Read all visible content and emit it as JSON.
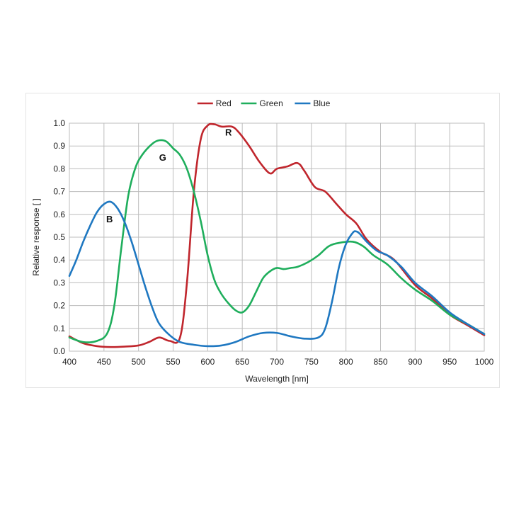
{
  "chart_data": {
    "type": "line",
    "title": "",
    "xlabel": "Wavelength [nm]",
    "ylabel": "Relative response [ ]",
    "xlim": [
      400,
      1000
    ],
    "ylim": [
      0,
      1.0
    ],
    "xticks": [
      400,
      450,
      500,
      550,
      600,
      650,
      700,
      750,
      800,
      850,
      900,
      950,
      1000
    ],
    "yticks": [
      0.0,
      0.1,
      0.2,
      0.3,
      0.4,
      0.5,
      0.6,
      0.7,
      0.8,
      0.9,
      1.0
    ],
    "grid": true,
    "legend_position": "top-center",
    "series": [
      {
        "name": "Red",
        "color": "#c0262d",
        "x": [
          400,
          420,
          440,
          460,
          480,
          500,
          515,
          530,
          545,
          560,
          570,
          580,
          590,
          600,
          610,
          620,
          635,
          645,
          660,
          675,
          690,
          700,
          715,
          730,
          740,
          755,
          770,
          785,
          800,
          815,
          830,
          850,
          870,
          900,
          925,
          950,
          975,
          1000
        ],
        "values": [
          0.065,
          0.035,
          0.022,
          0.018,
          0.02,
          0.025,
          0.04,
          0.06,
          0.045,
          0.06,
          0.3,
          0.7,
          0.93,
          0.99,
          0.995,
          0.985,
          0.985,
          0.96,
          0.9,
          0.83,
          0.78,
          0.8,
          0.81,
          0.825,
          0.79,
          0.72,
          0.7,
          0.65,
          0.6,
          0.56,
          0.49,
          0.435,
          0.4,
          0.29,
          0.23,
          0.16,
          0.115,
          0.07
        ],
        "label": "R",
        "label_at": [
          630,
          0.945
        ]
      },
      {
        "name": "Green",
        "color": "#1fae5c",
        "x": [
          400,
          420,
          440,
          455,
          465,
          475,
          485,
          495,
          505,
          520,
          530,
          540,
          550,
          560,
          570,
          580,
          590,
          600,
          610,
          620,
          630,
          640,
          650,
          660,
          670,
          680,
          690,
          700,
          710,
          720,
          730,
          745,
          760,
          775,
          790,
          810,
          825,
          840,
          860,
          880,
          900,
          925,
          950,
          975,
          1000
        ],
        "values": [
          0.06,
          0.04,
          0.045,
          0.08,
          0.2,
          0.45,
          0.68,
          0.8,
          0.86,
          0.91,
          0.925,
          0.92,
          0.89,
          0.86,
          0.8,
          0.7,
          0.57,
          0.42,
          0.31,
          0.25,
          0.21,
          0.18,
          0.17,
          0.2,
          0.26,
          0.32,
          0.35,
          0.365,
          0.36,
          0.365,
          0.37,
          0.39,
          0.42,
          0.46,
          0.475,
          0.48,
          0.46,
          0.42,
          0.38,
          0.32,
          0.27,
          0.22,
          0.16,
          0.12,
          0.075
        ],
        "label": "G",
        "label_at": [
          535,
          0.835
        ]
      },
      {
        "name": "Blue",
        "color": "#1f78c1",
        "x": [
          400,
          410,
          420,
          430,
          440,
          450,
          460,
          470,
          480,
          490,
          500,
          510,
          520,
          530,
          545,
          560,
          580,
          600,
          620,
          640,
          660,
          680,
          700,
          720,
          740,
          760,
          770,
          780,
          790,
          800,
          810,
          815,
          820,
          830,
          845,
          860,
          880,
          900,
          925,
          950,
          975,
          1000
        ],
        "values": [
          0.33,
          0.4,
          0.48,
          0.55,
          0.61,
          0.645,
          0.655,
          0.625,
          0.565,
          0.48,
          0.38,
          0.28,
          0.19,
          0.12,
          0.07,
          0.04,
          0.028,
          0.022,
          0.025,
          0.04,
          0.065,
          0.08,
          0.08,
          0.065,
          0.055,
          0.06,
          0.1,
          0.22,
          0.37,
          0.47,
          0.52,
          0.525,
          0.515,
          0.48,
          0.44,
          0.42,
          0.37,
          0.3,
          0.24,
          0.17,
          0.12,
          0.075
        ],
        "label": "B",
        "label_at": [
          458,
          0.565
        ]
      }
    ]
  }
}
